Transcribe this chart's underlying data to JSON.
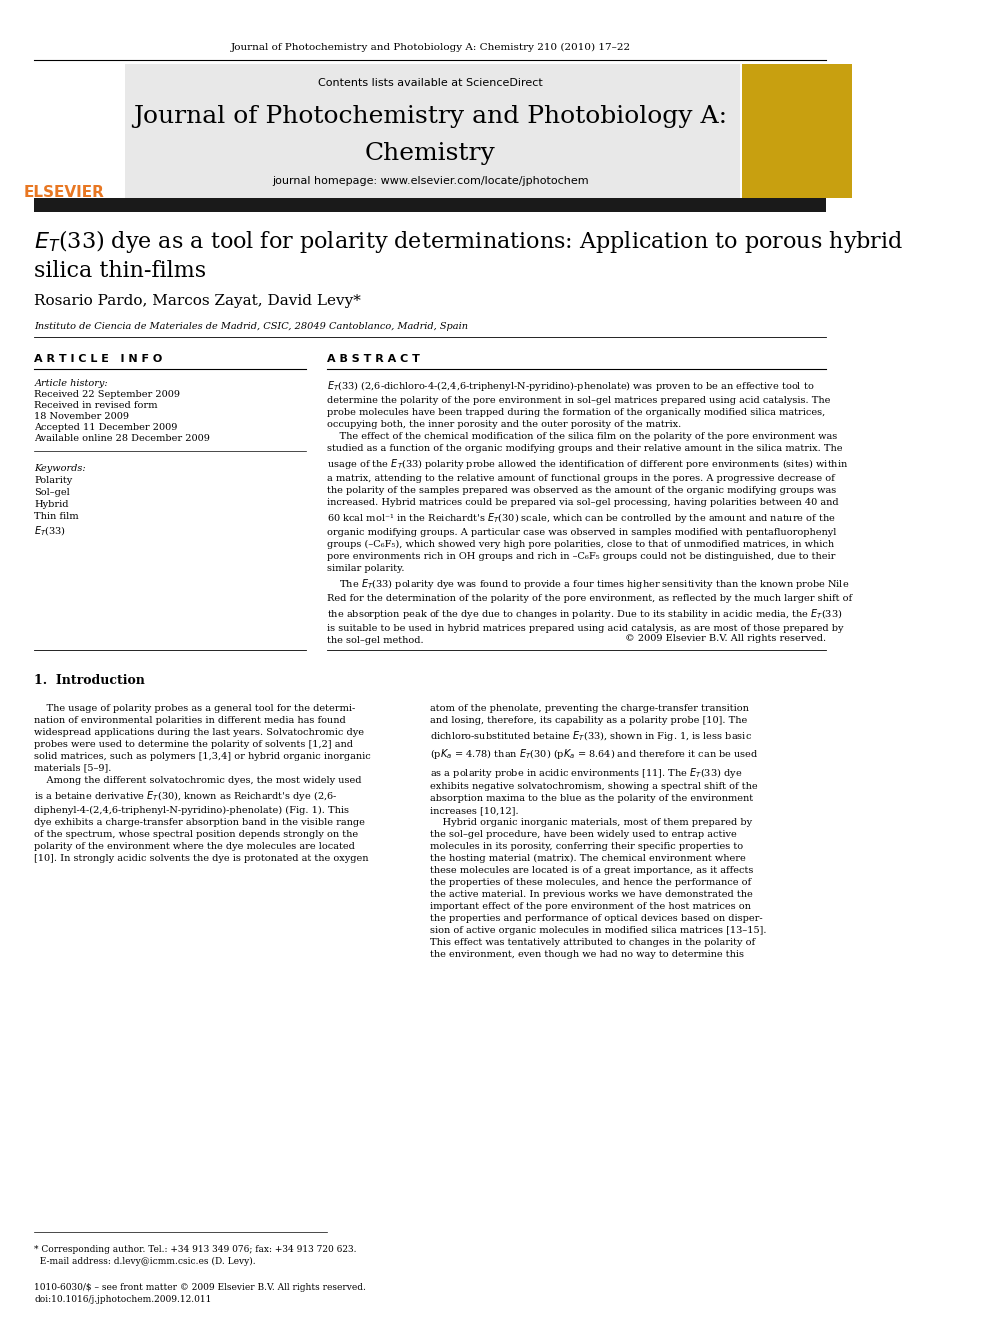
{
  "page_width": 9.92,
  "page_height": 13.23,
  "background_color": "#ffffff",
  "header_journal_text": "Journal of Photochemistry and Photobiology A: Chemistry 210 (2010) 17–22",
  "header_journal_color": "#000000",
  "header_journal_fontsize": 7.5,
  "banner_bg_color": "#e8e8e8",
  "banner_title_line1": "Journal of Photochemistry and Photobiology A:",
  "banner_title_line2": "Chemistry",
  "banner_title_color": "#000000",
  "banner_title_fontsize": 18,
  "contents_text": "Contents lists available at ",
  "sciencedirect_text": "ScienceDirect",
  "sciencedirect_color": "#1a7abf",
  "contents_fontsize": 8,
  "homepage_prefix": "journal homepage: ",
  "homepage_url": "www.elsevier.com/locate/jphotochem",
  "homepage_url_color": "#1a7abf",
  "homepage_fontsize": 8,
  "article_title_color": "#000000",
  "article_title_fontsize": 16,
  "authors": "Rosario Pardo, Marcos Zayat, David Levy*",
  "authors_fontsize": 11,
  "authors_color": "#000000",
  "affiliation": "Instituto de Ciencia de Materiales de Madrid, CSIC, 28049 Cantoblanco, Madrid, Spain",
  "affiliation_fontsize": 7,
  "affiliation_color": "#000000",
  "article_info_header": "A R T I C L E   I N F O",
  "article_info_header_color": "#000000",
  "article_info_fontsize": 8,
  "abstract_header": "A B S T R A C T",
  "abstract_header_color": "#000000",
  "abstract_fontsize": 8,
  "article_history_label": "Article history:",
  "received1": "Received 22 September 2009",
  "received2": "Received in revised form",
  "received2b": "18 November 2009",
  "accepted": "Accepted 11 December 2009",
  "available": "Available online 28 December 2009",
  "article_info_text_fontsize": 7,
  "keywords_label": "Keywords:",
  "keywords": [
    "Polarity",
    "Sol–gel",
    "Hybrid",
    "Thin film",
    "ET(33)"
  ],
  "keywords_fontsize": 7,
  "abstract_text_fontsize": 7,
  "copyright_text": "© 2009 Elsevier B.V. All rights reserved.",
  "copyright_fontsize": 7,
  "intro_header": "1.  Introduction",
  "intro_fontsize": 9,
  "intro_col1_fontsize": 7,
  "intro_col2_fontsize": 7,
  "footnote_text": "* Corresponding author. Tel.: +34 913 349 076; fax: +34 913 720 623.\n  E-mail address: d.levy@icmm.csic.es (D. Levy).",
  "footnote_fontsize": 6.5,
  "doi_text": "1010-6030/$ – see front matter © 2009 Elsevier B.V. All rights reserved.\ndoi:10.1016/j.jphotochem.2009.12.011",
  "doi_fontsize": 6.5,
  "elsevier_color": "#e87722",
  "separator_color": "#000000",
  "thick_bar_color": "#1a1a1a"
}
